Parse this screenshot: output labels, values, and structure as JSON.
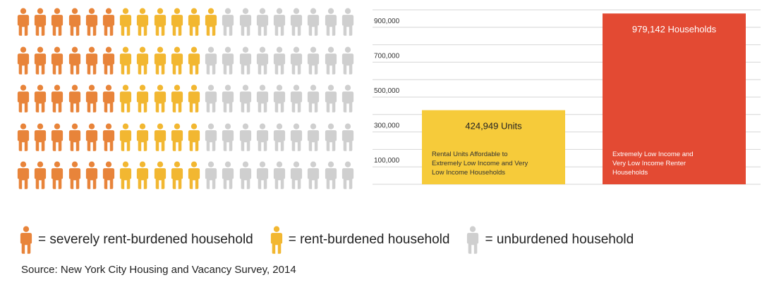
{
  "colors": {
    "severe": "#e8843a",
    "burdened": "#f2b731",
    "unburdened": "#cfcfcf"
  },
  "pictogram": {
    "rows": [
      [
        "severe",
        "severe",
        "severe",
        "severe",
        "severe",
        "severe",
        "burdened",
        "burdened",
        "burdened",
        "burdened",
        "burdened",
        "burdened",
        "unburdened",
        "unburdened",
        "unburdened",
        "unburdened",
        "unburdened",
        "unburdened",
        "unburdened",
        "unburdened"
      ],
      [
        "severe",
        "severe",
        "severe",
        "severe",
        "severe",
        "severe",
        "burdened",
        "burdened",
        "burdened",
        "burdened",
        "burdened",
        "unburdened",
        "unburdened",
        "unburdened",
        "unburdened",
        "unburdened",
        "unburdened",
        "unburdened",
        "unburdened",
        "unburdened"
      ],
      [
        "severe",
        "severe",
        "severe",
        "severe",
        "severe",
        "severe",
        "burdened",
        "burdened",
        "burdened",
        "burdened",
        "burdened",
        "unburdened",
        "unburdened",
        "unburdened",
        "unburdened",
        "unburdened",
        "unburdened",
        "unburdened",
        "unburdened",
        "unburdened"
      ],
      [
        "severe",
        "severe",
        "severe",
        "severe",
        "severe",
        "severe",
        "burdened",
        "burdened",
        "burdened",
        "burdened",
        "burdened",
        "unburdened",
        "unburdened",
        "unburdened",
        "unburdened",
        "unburdened",
        "unburdened",
        "unburdened",
        "unburdened",
        "unburdened"
      ],
      [
        "severe",
        "severe",
        "severe",
        "severe",
        "severe",
        "severe",
        "burdened",
        "burdened",
        "burdened",
        "burdened",
        "burdened",
        "unburdened",
        "unburdened",
        "unburdened",
        "unburdened",
        "unburdened",
        "unburdened",
        "unburdened",
        "unburdened",
        "unburdened"
      ]
    ]
  },
  "legend": [
    {
      "key": "severe",
      "label": "= severely rent-burdened household"
    },
    {
      "key": "burdened",
      "label": "= rent-burdened household"
    },
    {
      "key": "unburdened",
      "label": "= unburdened household"
    }
  ],
  "source": "Source: New York City Housing and Vacancy Survey, 2014",
  "chart_data": {
    "type": "bar",
    "categories": [
      "Rental Units Affordable to Extremely Low Income and Very Low Income Households",
      "Extremely Low Income and Very Low Income Renter Households"
    ],
    "values": [
      424949,
      979142
    ],
    "value_labels": [
      "424,949 Units",
      "979,142 Households"
    ],
    "desc_lines": [
      [
        "Rental Units Affordable to",
        "Extremely Low Income and Very",
        "Low Income Households"
      ],
      [
        "Extremely Low Income and",
        "Very Low Income Renter",
        "Households"
      ]
    ],
    "bar_colors": [
      "#f6cb3a",
      "#e34a33"
    ],
    "ytick_labels": [
      "100,000",
      "300,000",
      "500,000",
      "700,000",
      "900,000"
    ],
    "ytick_values": [
      100000,
      300000,
      500000,
      700000,
      900000
    ],
    "ylim": [
      0,
      1000000
    ],
    "grid": true
  }
}
